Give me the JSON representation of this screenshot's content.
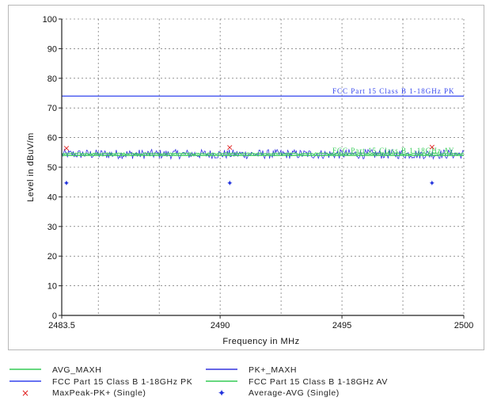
{
  "chart_data": {
    "type": "line",
    "title": "",
    "xlabel": "Frequency in MHz",
    "ylabel": "Level in dBuV/m",
    "xlim": [
      2483.5,
      2500
    ],
    "ylim": [
      0,
      100
    ],
    "x_ticks": [
      2483.5,
      2490,
      2495,
      2500
    ],
    "x_tick_labels": [
      "2483.5",
      "2490",
      "2495",
      "2500"
    ],
    "x_minor_ticks": [
      2485,
      2490,
      2495,
      2500
    ],
    "y_ticks": [
      0,
      10,
      20,
      30,
      40,
      50,
      60,
      70,
      80,
      90,
      100
    ],
    "y_tick_labels": [
      "0",
      "10",
      "20",
      "30",
      "40",
      "50",
      "60",
      "70",
      "80",
      "90",
      "100"
    ],
    "grid": true,
    "legend_position": "bottom",
    "colors": {
      "avg_trace": "#33cc55",
      "pk_trace": "#3333dd",
      "limit_pk": "#3344ee",
      "limit_av": "#33cc55",
      "maxpeak_marker": "#e02020",
      "average_marker": "#2233dd",
      "grid": "#555555",
      "frame": "#b8b8b8"
    },
    "series": [
      {
        "name": "AVG_MAXH",
        "kind": "trace",
        "base": 54.6,
        "noise": 0.25
      },
      {
        "name": "PK+_MAXH",
        "kind": "trace",
        "base": 54.4,
        "noise": 1.6
      },
      {
        "name": "FCC Part 15 Class B 1-18GHz PK",
        "kind": "limit",
        "y": 74,
        "label": "FCC Part 15 Class B 1-18GHz PK"
      },
      {
        "name": "FCC Part 15 Class B 1-18GHz AV",
        "kind": "limit",
        "y": 54,
        "label": "FCC Part 15 Class B 1-18GHz AV"
      },
      {
        "name": "MaxPeak-PK+ (Single)",
        "kind": "markers",
        "x": [
          2483.5,
          2490.2,
          2498.5
        ],
        "y": [
          56.5,
          56.8,
          56.9
        ]
      },
      {
        "name": "Average-AVG (Single)",
        "kind": "markers",
        "x": [
          2483.5,
          2490.2,
          2498.5
        ],
        "y": [
          44.8,
          44.8,
          44.8
        ]
      }
    ]
  },
  "legend": {
    "avg_maxh": "AVG_MAXH",
    "pk_maxh": "PK+_MAXH",
    "fcc_pk": "FCC Part 15 Class B 1-18GHz PK",
    "fcc_av": "FCC Part 15 Class B 1-18GHz AV",
    "maxpeak": "MaxPeak-PK+ (Single)",
    "average": "Average-AVG (Single)"
  }
}
